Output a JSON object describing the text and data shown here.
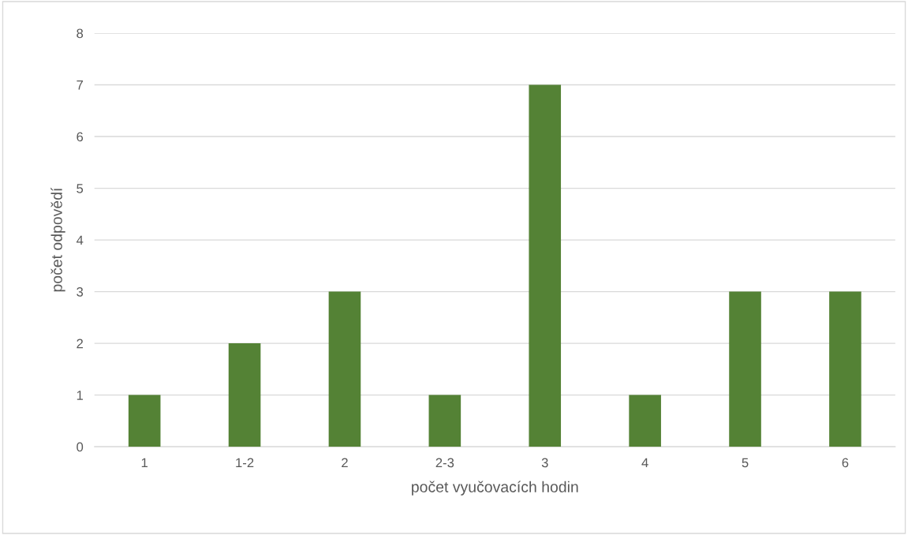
{
  "chart_data": {
    "type": "bar",
    "categories": [
      "1",
      "1-2",
      "2",
      "2-3",
      "3",
      "4",
      "5",
      "6"
    ],
    "values": [
      1,
      2,
      3,
      1,
      7,
      1,
      3,
      3
    ],
    "color": "#548235",
    "xlabel": "počet vyučovacích hodin",
    "ylabel": "počet odpovědí",
    "ylim": [
      0,
      8
    ],
    "yticks": [
      0,
      1,
      2,
      3,
      4,
      5,
      6,
      7,
      8
    ],
    "grid": "y",
    "legend": false
  }
}
